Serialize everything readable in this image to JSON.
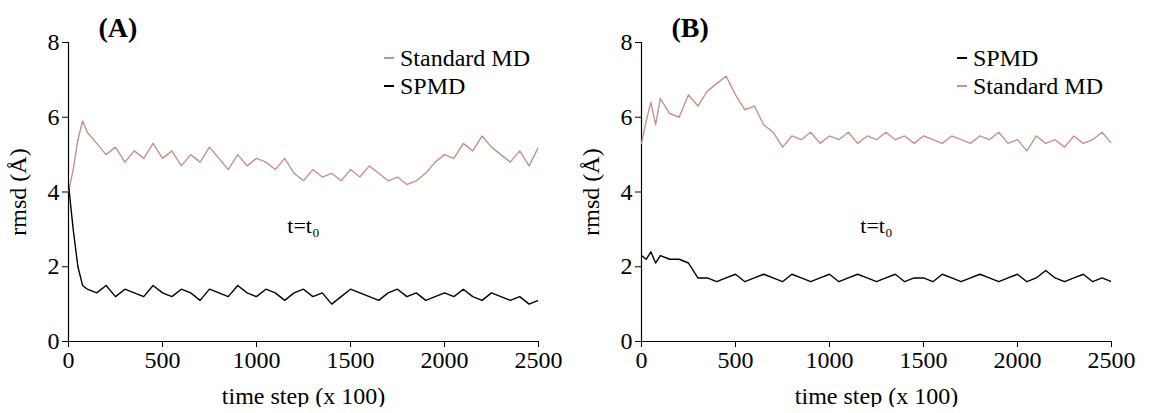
{
  "chart_data": [
    {
      "type": "line",
      "title": "(A)",
      "x_label": "time step (x 100)",
      "y_label": "rmsd (Å)",
      "xlim": [
        0,
        2500
      ],
      "xticks": [
        0,
        500,
        1000,
        1500,
        2000,
        2500
      ],
      "ylim": [
        0,
        8
      ],
      "yticks": [
        0,
        2,
        4,
        6,
        8
      ],
      "legend": "top-right",
      "annotations": [
        "t=t₀"
      ],
      "x": [
        0,
        25,
        50,
        75,
        100,
        150,
        200,
        250,
        300,
        350,
        400,
        450,
        500,
        550,
        600,
        650,
        700,
        750,
        800,
        850,
        900,
        950,
        1000,
        1050,
        1100,
        1150,
        1200,
        1250,
        1300,
        1350,
        1400,
        1450,
        1500,
        1550,
        1600,
        1650,
        1700,
        1750,
        1800,
        1850,
        1900,
        1950,
        2000,
        2050,
        2100,
        2150,
        2200,
        2250,
        2300,
        2350,
        2400,
        2450,
        2500
      ],
      "series": [
        {
          "name": "Standard MD",
          "color": "#c4928b",
          "values": [
            4.0,
            4.6,
            5.4,
            5.9,
            5.6,
            5.3,
            5.0,
            5.2,
            4.8,
            5.1,
            4.9,
            5.3,
            4.9,
            5.1,
            4.7,
            5.0,
            4.8,
            5.2,
            4.9,
            4.6,
            5.0,
            4.7,
            4.9,
            4.8,
            4.6,
            4.9,
            4.5,
            4.3,
            4.6,
            4.4,
            4.5,
            4.3,
            4.6,
            4.4,
            4.7,
            4.5,
            4.3,
            4.4,
            4.2,
            4.3,
            4.5,
            4.8,
            5.0,
            4.9,
            5.3,
            5.1,
            5.5,
            5.2,
            5.0,
            4.8,
            5.1,
            4.7,
            5.2
          ]
        },
        {
          "name": "SPMD",
          "color": "#000000",
          "values": [
            4.2,
            3.0,
            2.0,
            1.5,
            1.4,
            1.3,
            1.5,
            1.2,
            1.4,
            1.3,
            1.2,
            1.5,
            1.3,
            1.2,
            1.4,
            1.3,
            1.1,
            1.4,
            1.3,
            1.2,
            1.5,
            1.3,
            1.2,
            1.4,
            1.3,
            1.1,
            1.3,
            1.4,
            1.2,
            1.3,
            1.0,
            1.2,
            1.4,
            1.3,
            1.2,
            1.1,
            1.3,
            1.4,
            1.2,
            1.3,
            1.1,
            1.2,
            1.3,
            1.2,
            1.4,
            1.2,
            1.1,
            1.3,
            1.2,
            1.1,
            1.2,
            1.0,
            1.1
          ]
        }
      ]
    },
    {
      "type": "line",
      "title": "(B)",
      "x_label": "time step (x 100)",
      "y_label": "rmsd (Å)",
      "xlim": [
        0,
        2500
      ],
      "xticks": [
        0,
        500,
        1000,
        1500,
        2000,
        2500
      ],
      "ylim": [
        0,
        8
      ],
      "yticks": [
        0,
        2,
        4,
        6,
        8
      ],
      "legend": "top-right",
      "annotations": [
        "t=t₀"
      ],
      "x": [
        0,
        25,
        50,
        75,
        100,
        150,
        200,
        250,
        300,
        350,
        400,
        450,
        500,
        550,
        600,
        650,
        700,
        750,
        800,
        850,
        900,
        950,
        1000,
        1050,
        1100,
        1150,
        1200,
        1250,
        1300,
        1350,
        1400,
        1450,
        1500,
        1550,
        1600,
        1650,
        1700,
        1750,
        1800,
        1850,
        1900,
        1950,
        2000,
        2050,
        2100,
        2150,
        2200,
        2250,
        2300,
        2350,
        2400,
        2450,
        2500
      ],
      "series": [
        {
          "name": "SPMD",
          "color": "#000000",
          "values": [
            2.3,
            2.2,
            2.4,
            2.1,
            2.3,
            2.2,
            2.2,
            2.1,
            1.7,
            1.7,
            1.6,
            1.7,
            1.8,
            1.6,
            1.7,
            1.8,
            1.7,
            1.6,
            1.8,
            1.7,
            1.6,
            1.7,
            1.8,
            1.6,
            1.7,
            1.8,
            1.7,
            1.6,
            1.7,
            1.8,
            1.6,
            1.7,
            1.7,
            1.6,
            1.8,
            1.7,
            1.6,
            1.7,
            1.8,
            1.7,
            1.6,
            1.7,
            1.8,
            1.6,
            1.7,
            1.9,
            1.7,
            1.6,
            1.7,
            1.8,
            1.6,
            1.7,
            1.6
          ]
        },
        {
          "name": "Standard MD",
          "color": "#c4928b",
          "values": [
            5.3,
            5.9,
            6.4,
            5.8,
            6.5,
            6.1,
            6.0,
            6.6,
            6.3,
            6.7,
            6.9,
            7.1,
            6.6,
            6.2,
            6.3,
            5.8,
            5.6,
            5.2,
            5.5,
            5.4,
            5.6,
            5.3,
            5.5,
            5.4,
            5.6,
            5.3,
            5.5,
            5.4,
            5.6,
            5.4,
            5.5,
            5.3,
            5.5,
            5.4,
            5.3,
            5.5,
            5.4,
            5.3,
            5.5,
            5.4,
            5.6,
            5.3,
            5.4,
            5.1,
            5.5,
            5.3,
            5.4,
            5.2,
            5.5,
            5.3,
            5.4,
            5.6,
            5.3
          ]
        }
      ]
    }
  ]
}
